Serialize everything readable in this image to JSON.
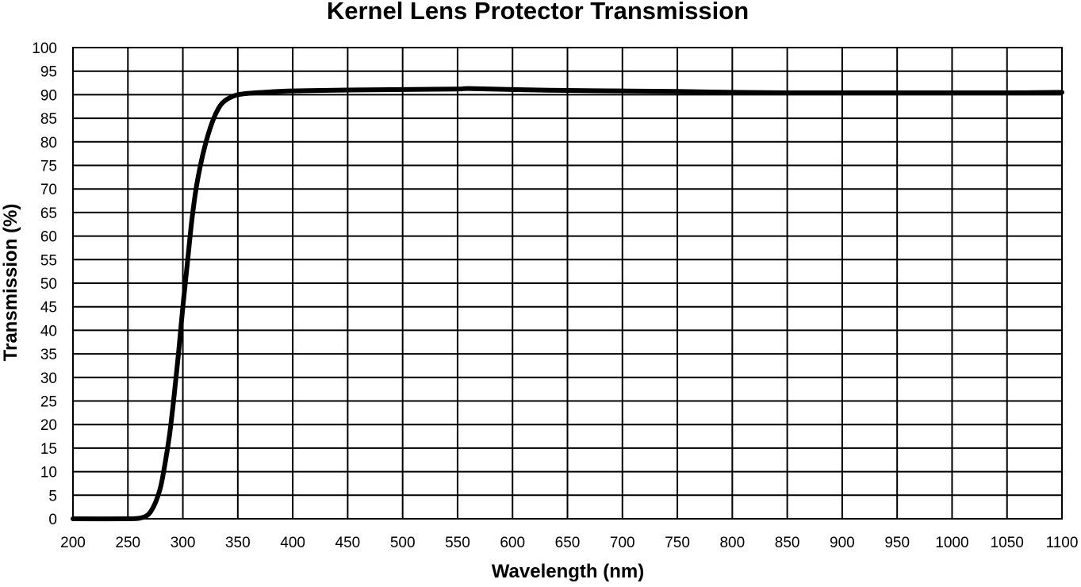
{
  "chart_data": {
    "type": "line",
    "title": "Kernel Lens Protector Transmission",
    "xlabel": "Wavelength (nm)",
    "ylabel": "Transmission (%)",
    "xlim": [
      200,
      1100
    ],
    "ylim": [
      0,
      100
    ],
    "x_ticks": [
      "200",
      "250",
      "300",
      "350",
      "400",
      "450",
      "500",
      "550",
      "600",
      "650",
      "700",
      "750",
      "800",
      "850",
      "900",
      "950",
      "1000",
      "1050",
      "1100"
    ],
    "y_ticks": [
      "0",
      "5",
      "10",
      "15",
      "20",
      "25",
      "30",
      "35",
      "40",
      "45",
      "50",
      "55",
      "60",
      "65",
      "70",
      "75",
      "80",
      "85",
      "90",
      "95",
      "100"
    ],
    "grid": true,
    "legend": "none",
    "line_color": "#000000",
    "series": [
      {
        "x": [
          200,
          250,
          262,
          268,
          272,
          276,
          280,
          284,
          288,
          292,
          296,
          300,
          304,
          308,
          312,
          316,
          320,
          325,
          330,
          335,
          340,
          345,
          350,
          360,
          380,
          400,
          450,
          500,
          550,
          560,
          600,
          650,
          700,
          750,
          800,
          850,
          900,
          950,
          1000,
          1050,
          1100
        ],
        "y": [
          0,
          0,
          0.2,
          0.8,
          2,
          4,
          7,
          12,
          18,
          26,
          35,
          45,
          54,
          63,
          70,
          75,
          79,
          83,
          86,
          88,
          89,
          89.6,
          90,
          90.3,
          90.6,
          90.8,
          91,
          91.1,
          91.2,
          91.3,
          91.1,
          90.9,
          90.8,
          90.7,
          90.5,
          90.4,
          90.4,
          90.4,
          90.4,
          90.4,
          90.5
        ]
      }
    ]
  }
}
